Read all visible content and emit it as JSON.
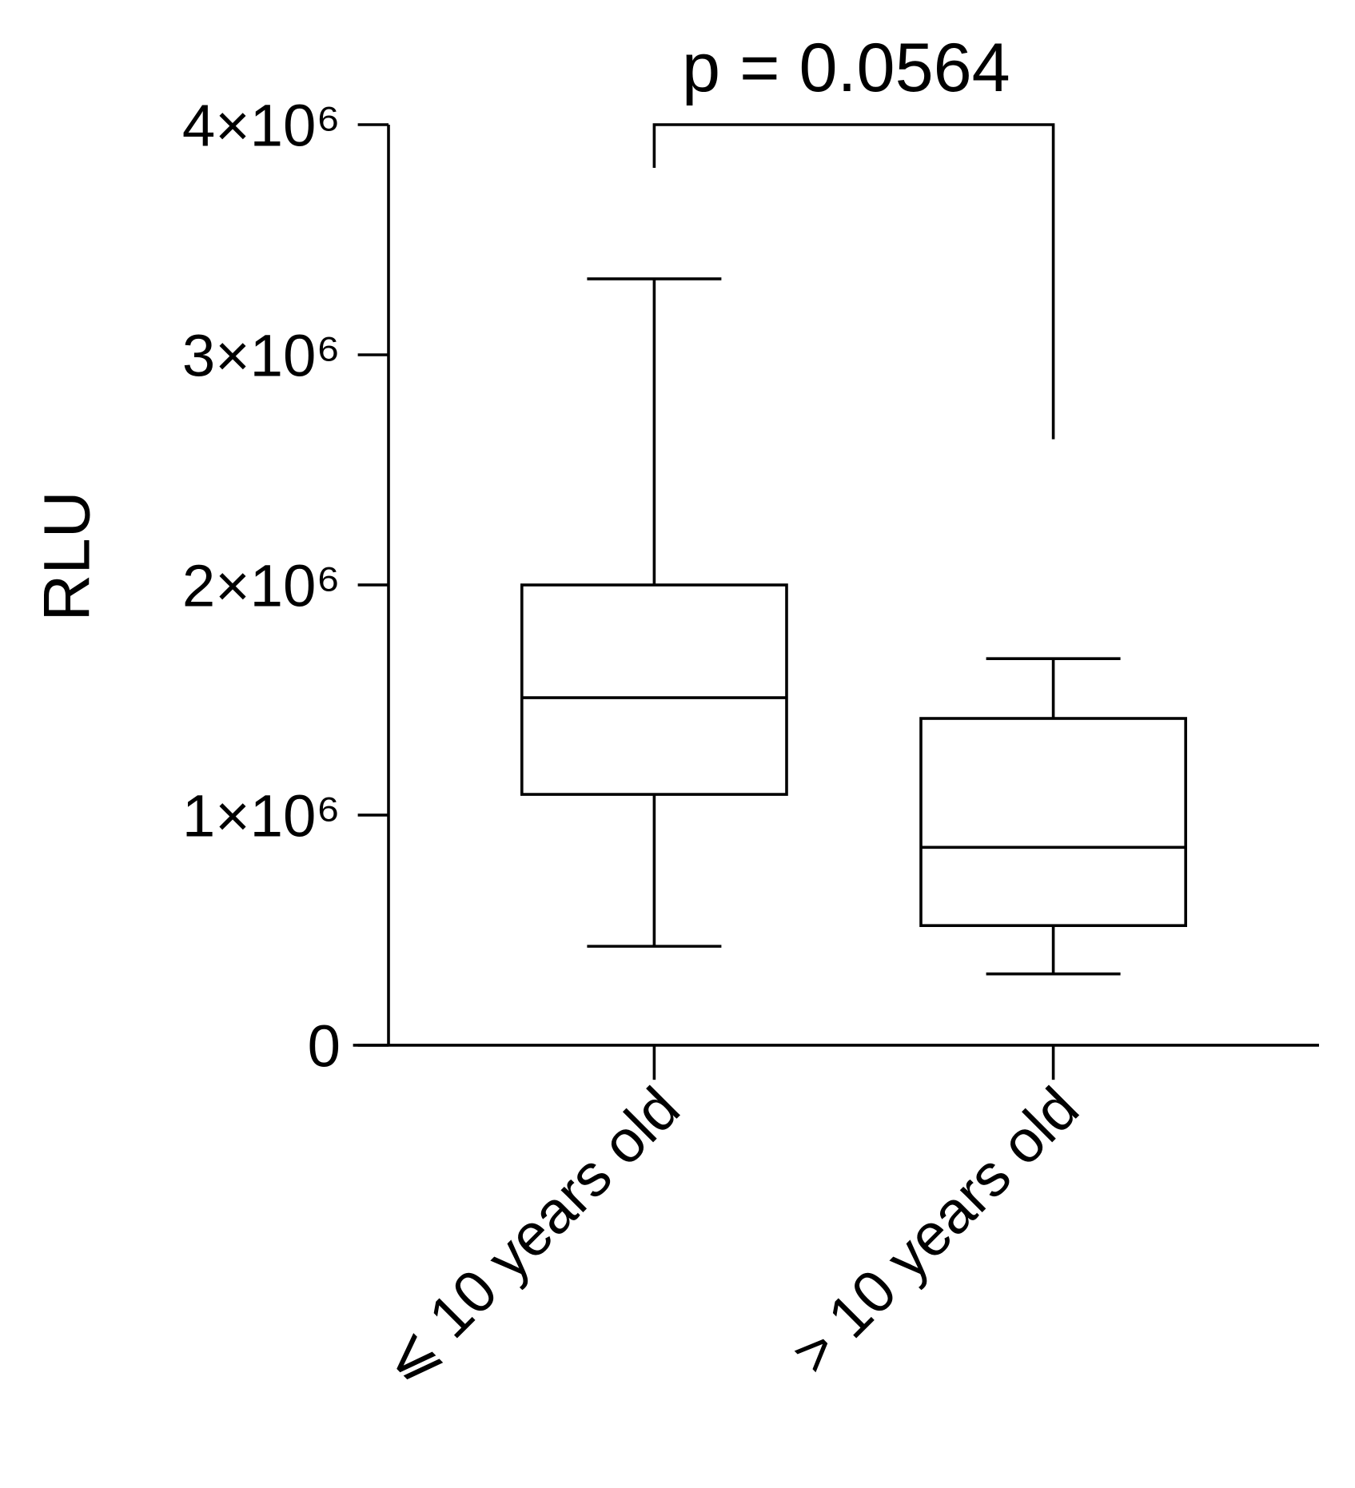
{
  "chart_data": {
    "type": "box",
    "ylabel": "RLU",
    "categories": [
      "⩽ 10 years old",
      "> 10 years old"
    ],
    "boxes": [
      {
        "whisker_low": 430000,
        "q1": 1090000,
        "median": 1510000,
        "q3": 2000000,
        "whisker_high": 3330000
      },
      {
        "whisker_low": 310000,
        "q1": 520000,
        "median": 860000,
        "q3": 1420000,
        "whisker_high": 1680000
      }
    ],
    "color": "#000000",
    "ylim": [
      0,
      4000000
    ],
    "yticks": [
      0,
      {
        "value": 1000000,
        "label": "1×10⁶"
      },
      {
        "value": 2000000,
        "label": "2×10⁶"
      },
      {
        "value": 3000000,
        "label": "3×10⁶"
      },
      {
        "value": 4000000,
        "label": "4×10⁶"
      }
    ],
    "annotations": [
      {
        "text": "p = 0.0564"
      }
    ]
  }
}
